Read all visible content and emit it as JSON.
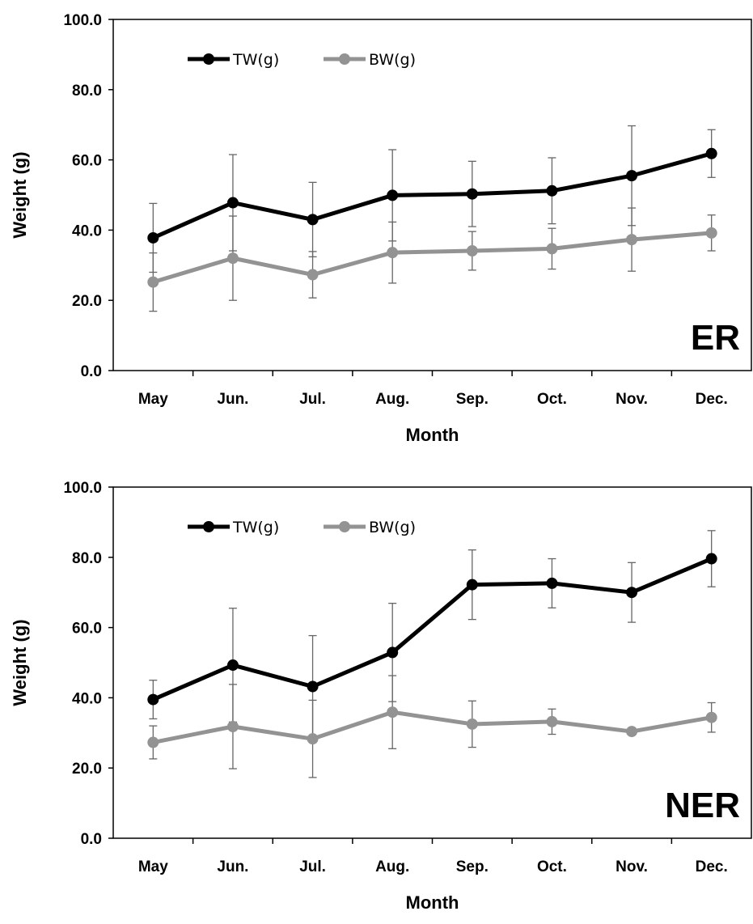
{
  "chart_data": [
    {
      "type": "line",
      "panel_label": "ER",
      "xlabel": "Month",
      "ylabel": "Weight (g)",
      "ylim": [
        0,
        100
      ],
      "yticks": [
        "0.0",
        "20.0",
        "40.0",
        "60.0",
        "80.0",
        "100.0"
      ],
      "categories": [
        "May",
        "Jun.",
        "Jul.",
        "Aug.",
        "Sep.",
        "Oct.",
        "Nov.",
        "Dec."
      ],
      "legend_position": "top-left",
      "series": [
        {
          "name": "TW(g)",
          "color": "#000000",
          "values": [
            37.8,
            47.8,
            43.0,
            49.9,
            50.3,
            51.2,
            55.5,
            61.8
          ],
          "error": [
            9.8,
            13.7,
            10.6,
            13.0,
            9.3,
            9.4,
            14.2,
            6.8
          ]
        },
        {
          "name": "BW(g)",
          "color": "#939393",
          "values": [
            25.2,
            32.0,
            27.3,
            33.6,
            34.1,
            34.7,
            37.3,
            39.2
          ],
          "error": [
            8.3,
            12.0,
            6.6,
            8.7,
            5.5,
            5.8,
            9.0,
            5.1
          ]
        }
      ]
    },
    {
      "type": "line",
      "panel_label": "NER",
      "xlabel": "Month",
      "ylabel": "Weight (g)",
      "ylim": [
        0,
        100
      ],
      "yticks": [
        "0.0",
        "20.0",
        "40.0",
        "60.0",
        "80.0",
        "100.0"
      ],
      "categories": [
        "May",
        "Jun.",
        "Jul.",
        "Aug.",
        "Sep.",
        "Oct.",
        "Nov.",
        "Dec."
      ],
      "legend_position": "top-left",
      "series": [
        {
          "name": "TW(g)",
          "color": "#000000",
          "values": [
            39.5,
            49.3,
            43.2,
            52.9,
            72.2,
            72.6,
            70.0,
            79.6
          ],
          "error": [
            5.5,
            16.2,
            14.5,
            14.0,
            9.9,
            7.0,
            8.5,
            8.0
          ]
        },
        {
          "name": "BW(g)",
          "color": "#939393",
          "values": [
            27.3,
            31.8,
            28.3,
            35.9,
            32.5,
            33.2,
            30.4,
            34.4
          ],
          "error": [
            4.7,
            12.0,
            11.0,
            10.4,
            6.6,
            3.6,
            0.0,
            4.2
          ]
        }
      ]
    }
  ]
}
